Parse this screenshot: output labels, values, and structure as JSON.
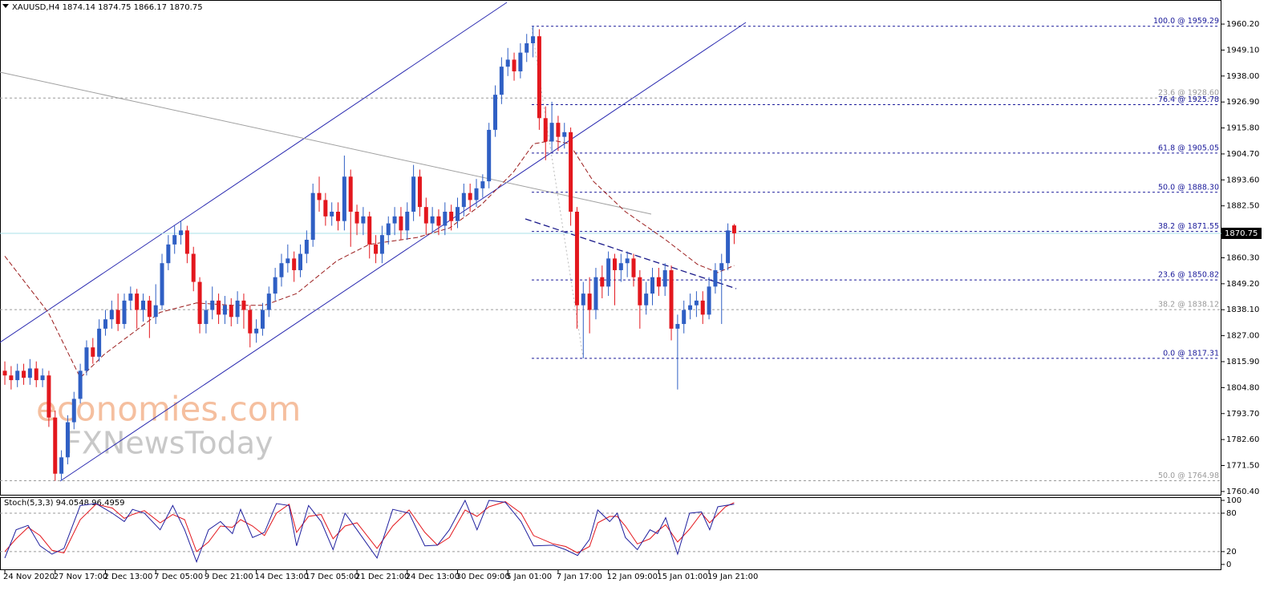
{
  "chart_data": {
    "type": "candlestick",
    "header": "XAUUSD,H4  1874.14 1874.75 1866.17 1870.75",
    "watermark": [
      "economies.com",
      "FXNewsToday"
    ],
    "up_color": "#2f5fc4",
    "down_color": "#e3171d",
    "xlim": [
      -0.77,
      193.5
    ],
    "xticks": [
      {
        "value": 0,
        "label": "24 Nov 2020"
      },
      {
        "value": 8,
        "label": "27 Nov 17:00"
      },
      {
        "value": 16,
        "label": "2 Dec 13:00"
      },
      {
        "value": 24,
        "label": "7 Dec 05:00"
      },
      {
        "value": 32,
        "label": "9 Dec 21:00"
      },
      {
        "value": 40,
        "label": "14 Dec 13:00"
      },
      {
        "value": 48,
        "label": "17 Dec 05:00"
      },
      {
        "value": 56,
        "label": "21 Dec 21:00"
      },
      {
        "value": 64,
        "label": "24 Dec 13:00"
      },
      {
        "value": 72,
        "label": "30 Dec 09:00"
      },
      {
        "value": 80,
        "label": "5 Jan 01:00"
      },
      {
        "value": 88,
        "label": "7 Jan 17:00"
      },
      {
        "value": 96,
        "label": "12 Jan 09:00"
      },
      {
        "value": 104,
        "label": "15 Jan 01:00"
      },
      {
        "value": 112,
        "label": "19 Jan 21:00"
      }
    ],
    "ylim": [
      1759.0,
      1970.5
    ],
    "yticks": [
      {
        "value": 1960.2,
        "label": "1960.20"
      },
      {
        "value": 1949.1,
        "label": "1949.10"
      },
      {
        "value": 1938,
        "label": "1938.00"
      },
      {
        "value": 1926.9,
        "label": "1926.90"
      },
      {
        "value": 1915.8,
        "label": "1915.80"
      },
      {
        "value": 1904.7,
        "label": "1904.70"
      },
      {
        "value": 1893.6,
        "label": "1893.60"
      },
      {
        "value": 1882.5,
        "label": "1882.50"
      },
      {
        "value": 1860.3,
        "label": "1860.30"
      },
      {
        "value": 1849.2,
        "label": "1849.20"
      },
      {
        "value": 1838.1,
        "label": "1838.10"
      },
      {
        "value": 1827,
        "label": "1827.00"
      },
      {
        "value": 1815.9,
        "label": "1815.90"
      },
      {
        "value": 1804.8,
        "label": "1804.80"
      },
      {
        "value": 1793.7,
        "label": "1793.70"
      },
      {
        "value": 1782.6,
        "label": "1782.60"
      },
      {
        "value": 1771.5,
        "label": "1771.50"
      },
      {
        "value": 1760.4,
        "label": "1760.40"
      }
    ],
    "last": {
      "value": 1870.75,
      "label": "1870.75"
    },
    "open": [
      1812,
      1810,
      1808,
      1812,
      1809,
      1813,
      1808,
      1810,
      1792,
      1768,
      1775,
      1790,
      1800,
      1812,
      1822,
      1818,
      1830,
      1834,
      1838,
      1832,
      1842,
      1845,
      1838,
      1842,
      1835,
      1840,
      1858,
      1866,
      1870,
      1872,
      1862,
      1850,
      1832,
      1838,
      1842,
      1836,
      1840,
      1835,
      1842,
      1838,
      1828,
      1830,
      1838,
      1845,
      1852,
      1858,
      1860,
      1855,
      1862,
      1868,
      1888,
      1885,
      1878,
      1880,
      1876,
      1895,
      1880,
      1875,
      1878,
      1866,
      1862,
      1870,
      1875,
      1878,
      1872,
      1880,
      1895,
      1882,
      1875,
      1878,
      1874,
      1880,
      1876,
      1882,
      1888,
      1885,
      1890,
      1893,
      1915,
      1930,
      1942,
      1945,
      1940,
      1948,
      1952,
      1955,
      1920,
      1910,
      1918,
      1912,
      1914,
      1880,
      1840,
      1845,
      1838,
      1852,
      1848,
      1860,
      1855,
      1858,
      1860,
      1852,
      1840,
      1845,
      1852,
      1848,
      1855,
      1830,
      1832,
      1838,
      1840,
      1842,
      1836,
      1848,
      1855,
      1858,
      1874.14
    ],
    "high": [
      1816,
      1814,
      1815,
      1815,
      1817,
      1816,
      1813,
      1812,
      1795,
      1778,
      1793,
      1803,
      1815,
      1825,
      1826,
      1834,
      1838,
      1842,
      1845,
      1845,
      1848,
      1847,
      1845,
      1844,
      1849,
      1862,
      1870,
      1874,
      1876,
      1874,
      1865,
      1852,
      1842,
      1848,
      1845,
      1844,
      1843,
      1846,
      1845,
      1840,
      1834,
      1841,
      1848,
      1856,
      1862,
      1866,
      1863,
      1866,
      1872,
      1892,
      1895,
      1888,
      1884,
      1884,
      1904,
      1898,
      1883,
      1882,
      1880,
      1870,
      1874,
      1878,
      1882,
      1882,
      1884,
      1900,
      1898,
      1886,
      1882,
      1881,
      1884,
      1883,
      1886,
      1892,
      1892,
      1894,
      1896,
      1918,
      1934,
      1946,
      1950,
      1948,
      1952,
      1956,
      1959.29,
      1958,
      1925,
      1927,
      1921,
      1918,
      1916,
      1882,
      1850,
      1852,
      1856,
      1857,
      1863,
      1862,
      1862,
      1863,
      1862,
      1855,
      1850,
      1856,
      1856,
      1858,
      1857,
      1836,
      1842,
      1845,
      1846,
      1846,
      1852,
      1858,
      1862,
      1875,
      1874.75
    ],
    "low": [
      1806,
      1804,
      1805,
      1806,
      1806,
      1805,
      1805,
      1788,
      1764.98,
      1765,
      1772,
      1787,
      1798,
      1810,
      1815,
      1816,
      1827,
      1830,
      1829,
      1830,
      1838,
      1830,
      1833,
      1826,
      1832,
      1838,
      1855,
      1862,
      1866,
      1858,
      1846,
      1828,
      1828,
      1834,
      1832,
      1832,
      1831,
      1832,
      1830,
      1822,
      1824,
      1827,
      1835,
      1842,
      1848,
      1854,
      1850,
      1852,
      1858,
      1865,
      1880,
      1874,
      1874,
      1872,
      1872,
      1865,
      1870,
      1870,
      1860,
      1858,
      1858,
      1866,
      1870,
      1868,
      1868,
      1876,
      1878,
      1870,
      1871,
      1870,
      1870,
      1872,
      1873,
      1878,
      1880,
      1882,
      1886,
      1890,
      1912,
      1926,
      1938,
      1936,
      1937,
      1944,
      1946,
      1915,
      1902,
      1906,
      1906,
      1907,
      1874,
      1830,
      1817.31,
      1828,
      1834,
      1843,
      1844,
      1840,
      1850,
      1852,
      1848,
      1830,
      1836,
      1840,
      1844,
      1844,
      1825,
      1804,
      1828,
      1834,
      1835,
      1832,
      1834,
      1845,
      1832,
      1855,
      1866.17
    ],
    "close": [
      1810,
      1808,
      1812,
      1809,
      1813,
      1808,
      1810,
      1792,
      1768,
      1775,
      1790,
      1800,
      1812,
      1822,
      1818,
      1830,
      1834,
      1838,
      1832,
      1842,
      1845,
      1838,
      1842,
      1835,
      1840,
      1858,
      1866,
      1870,
      1872,
      1862,
      1850,
      1832,
      1838,
      1842,
      1836,
      1840,
      1835,
      1842,
      1838,
      1828,
      1830,
      1838,
      1845,
      1852,
      1858,
      1860,
      1855,
      1862,
      1868,
      1888,
      1885,
      1878,
      1880,
      1876,
      1895,
      1880,
      1875,
      1878,
      1866,
      1862,
      1870,
      1875,
      1878,
      1872,
      1880,
      1895,
      1882,
      1875,
      1878,
      1874,
      1880,
      1876,
      1882,
      1888,
      1885,
      1890,
      1893,
      1915,
      1930,
      1942,
      1945,
      1940,
      1948,
      1952,
      1955,
      1920,
      1910,
      1918,
      1912,
      1914,
      1880,
      1840,
      1845,
      1838,
      1852,
      1848,
      1860,
      1855,
      1858,
      1860,
      1852,
      1840,
      1845,
      1852,
      1848,
      1855,
      1830,
      1832,
      1838,
      1840,
      1842,
      1836,
      1848,
      1855,
      1858,
      1872,
      1870.75
    ],
    "ma": {
      "color": "#9b1c1c",
      "x": [
        0,
        6.9,
        12,
        15.8,
        24.7,
        30.5,
        36.2,
        41.3,
        46.4,
        52.8,
        57.9,
        65.6,
        70.7,
        75.8,
        80.9,
        84.1,
        87.2,
        89.8,
        93.6,
        98.7,
        105.1,
        110.2,
        113.4,
        116
      ],
      "values": [
        1861,
        1837,
        1809,
        1819,
        1837,
        1841,
        1840,
        1840,
        1845,
        1859,
        1866,
        1869,
        1873,
        1883,
        1897,
        1909,
        1910.5,
        1909,
        1893,
        1880,
        1868,
        1857.4,
        1854,
        1857
      ]
    },
    "fib_levels": [
      {
        "label": "100.0 @ 1959.29",
        "value": 1959.29,
        "style": "new"
      },
      {
        "label": "23.6 @ 1928.60",
        "value": 1928.6,
        "style": "old"
      },
      {
        "label": "76.4 @ 1925.78",
        "value": 1925.78,
        "style": "new"
      },
      {
        "label": "61.8 @ 1905.05",
        "value": 1905.05,
        "style": "new"
      },
      {
        "label": "50.0 @ 1888.30",
        "value": 1888.3,
        "style": "new"
      },
      {
        "label": "38.2 @ 1871.55",
        "value": 1871.55,
        "style": "new"
      },
      {
        "label": "23.6 @ 1850.82",
        "value": 1850.82,
        "style": "new"
      },
      {
        "label": "38.2 @ 1838.12",
        "value": 1838.12,
        "style": "old"
      },
      {
        "label": "0.0 @ 1817.31",
        "value": 1817.31,
        "style": "new"
      },
      {
        "label": "50.0 @ 1764.98",
        "value": 1764.98,
        "style": "old"
      }
    ],
    "stochastic": {
      "label": "Stoch(5,3,3) 94.0548 96.4959",
      "ylim": [
        -8.9,
        105
      ],
      "yticks": [
        0,
        20,
        80,
        100
      ],
      "levels": [
        20,
        80
      ],
      "x": [
        0,
        1.8,
        3.7,
        5.6,
        7.5,
        9.4,
        12,
        14.5,
        17.1,
        19,
        20.3,
        22.2,
        24.7,
        26.7,
        28.6,
        30.5,
        32.4,
        34.3,
        36.2,
        37.5,
        39.4,
        41.3,
        43.2,
        45.2,
        46.4,
        48.3,
        50.3,
        52.2,
        54.1,
        56,
        59.2,
        61.7,
        64.3,
        66.8,
        68.8,
        70.7,
        73.2,
        75.1,
        77,
        79.6,
        82.1,
        84.1,
        87.2,
        89.2,
        91.1,
        93,
        94.3,
        96.2,
        97.4,
        98.7,
        100.6,
        102.6,
        103.8,
        105.1,
        107,
        108.9,
        110.8,
        112.1,
        113.4,
        114.6,
        116
      ],
      "main": {
        "color": "#1f1f9e",
        "values": [
          10,
          54,
          61,
          29,
          16,
          25,
          92,
          95,
          80,
          67,
          86,
          80,
          54,
          92,
          54,
          4,
          54,
          67,
          48,
          86,
          42,
          50,
          95,
          92,
          29,
          92,
          67,
          23,
          80,
          54,
          10,
          86,
          80,
          29,
          30,
          54,
          100,
          54,
          100,
          97,
          67,
          29,
          30,
          23,
          14,
          39,
          85,
          67,
          80,
          42,
          23,
          54,
          48,
          73,
          16,
          80,
          82,
          54,
          90,
          92,
          94.0548
        ]
      },
      "signal": {
        "color": "#e3171d",
        "values": [
          20,
          40,
          58,
          45,
          22,
          18,
          70,
          94,
          88,
          72,
          78,
          84,
          65,
          78,
          70,
          20,
          35,
          60,
          58,
          70,
          60,
          45,
          80,
          94,
          50,
          75,
          78,
          40,
          60,
          65,
          25,
          60,
          85,
          50,
          30,
          42,
          85,
          75,
          90,
          98,
          80,
          45,
          32,
          28,
          18,
          28,
          65,
          75,
          75,
          60,
          32,
          40,
          52,
          62,
          35,
          55,
          80,
          65,
          78,
          90,
          96.4959
        ]
      }
    }
  }
}
